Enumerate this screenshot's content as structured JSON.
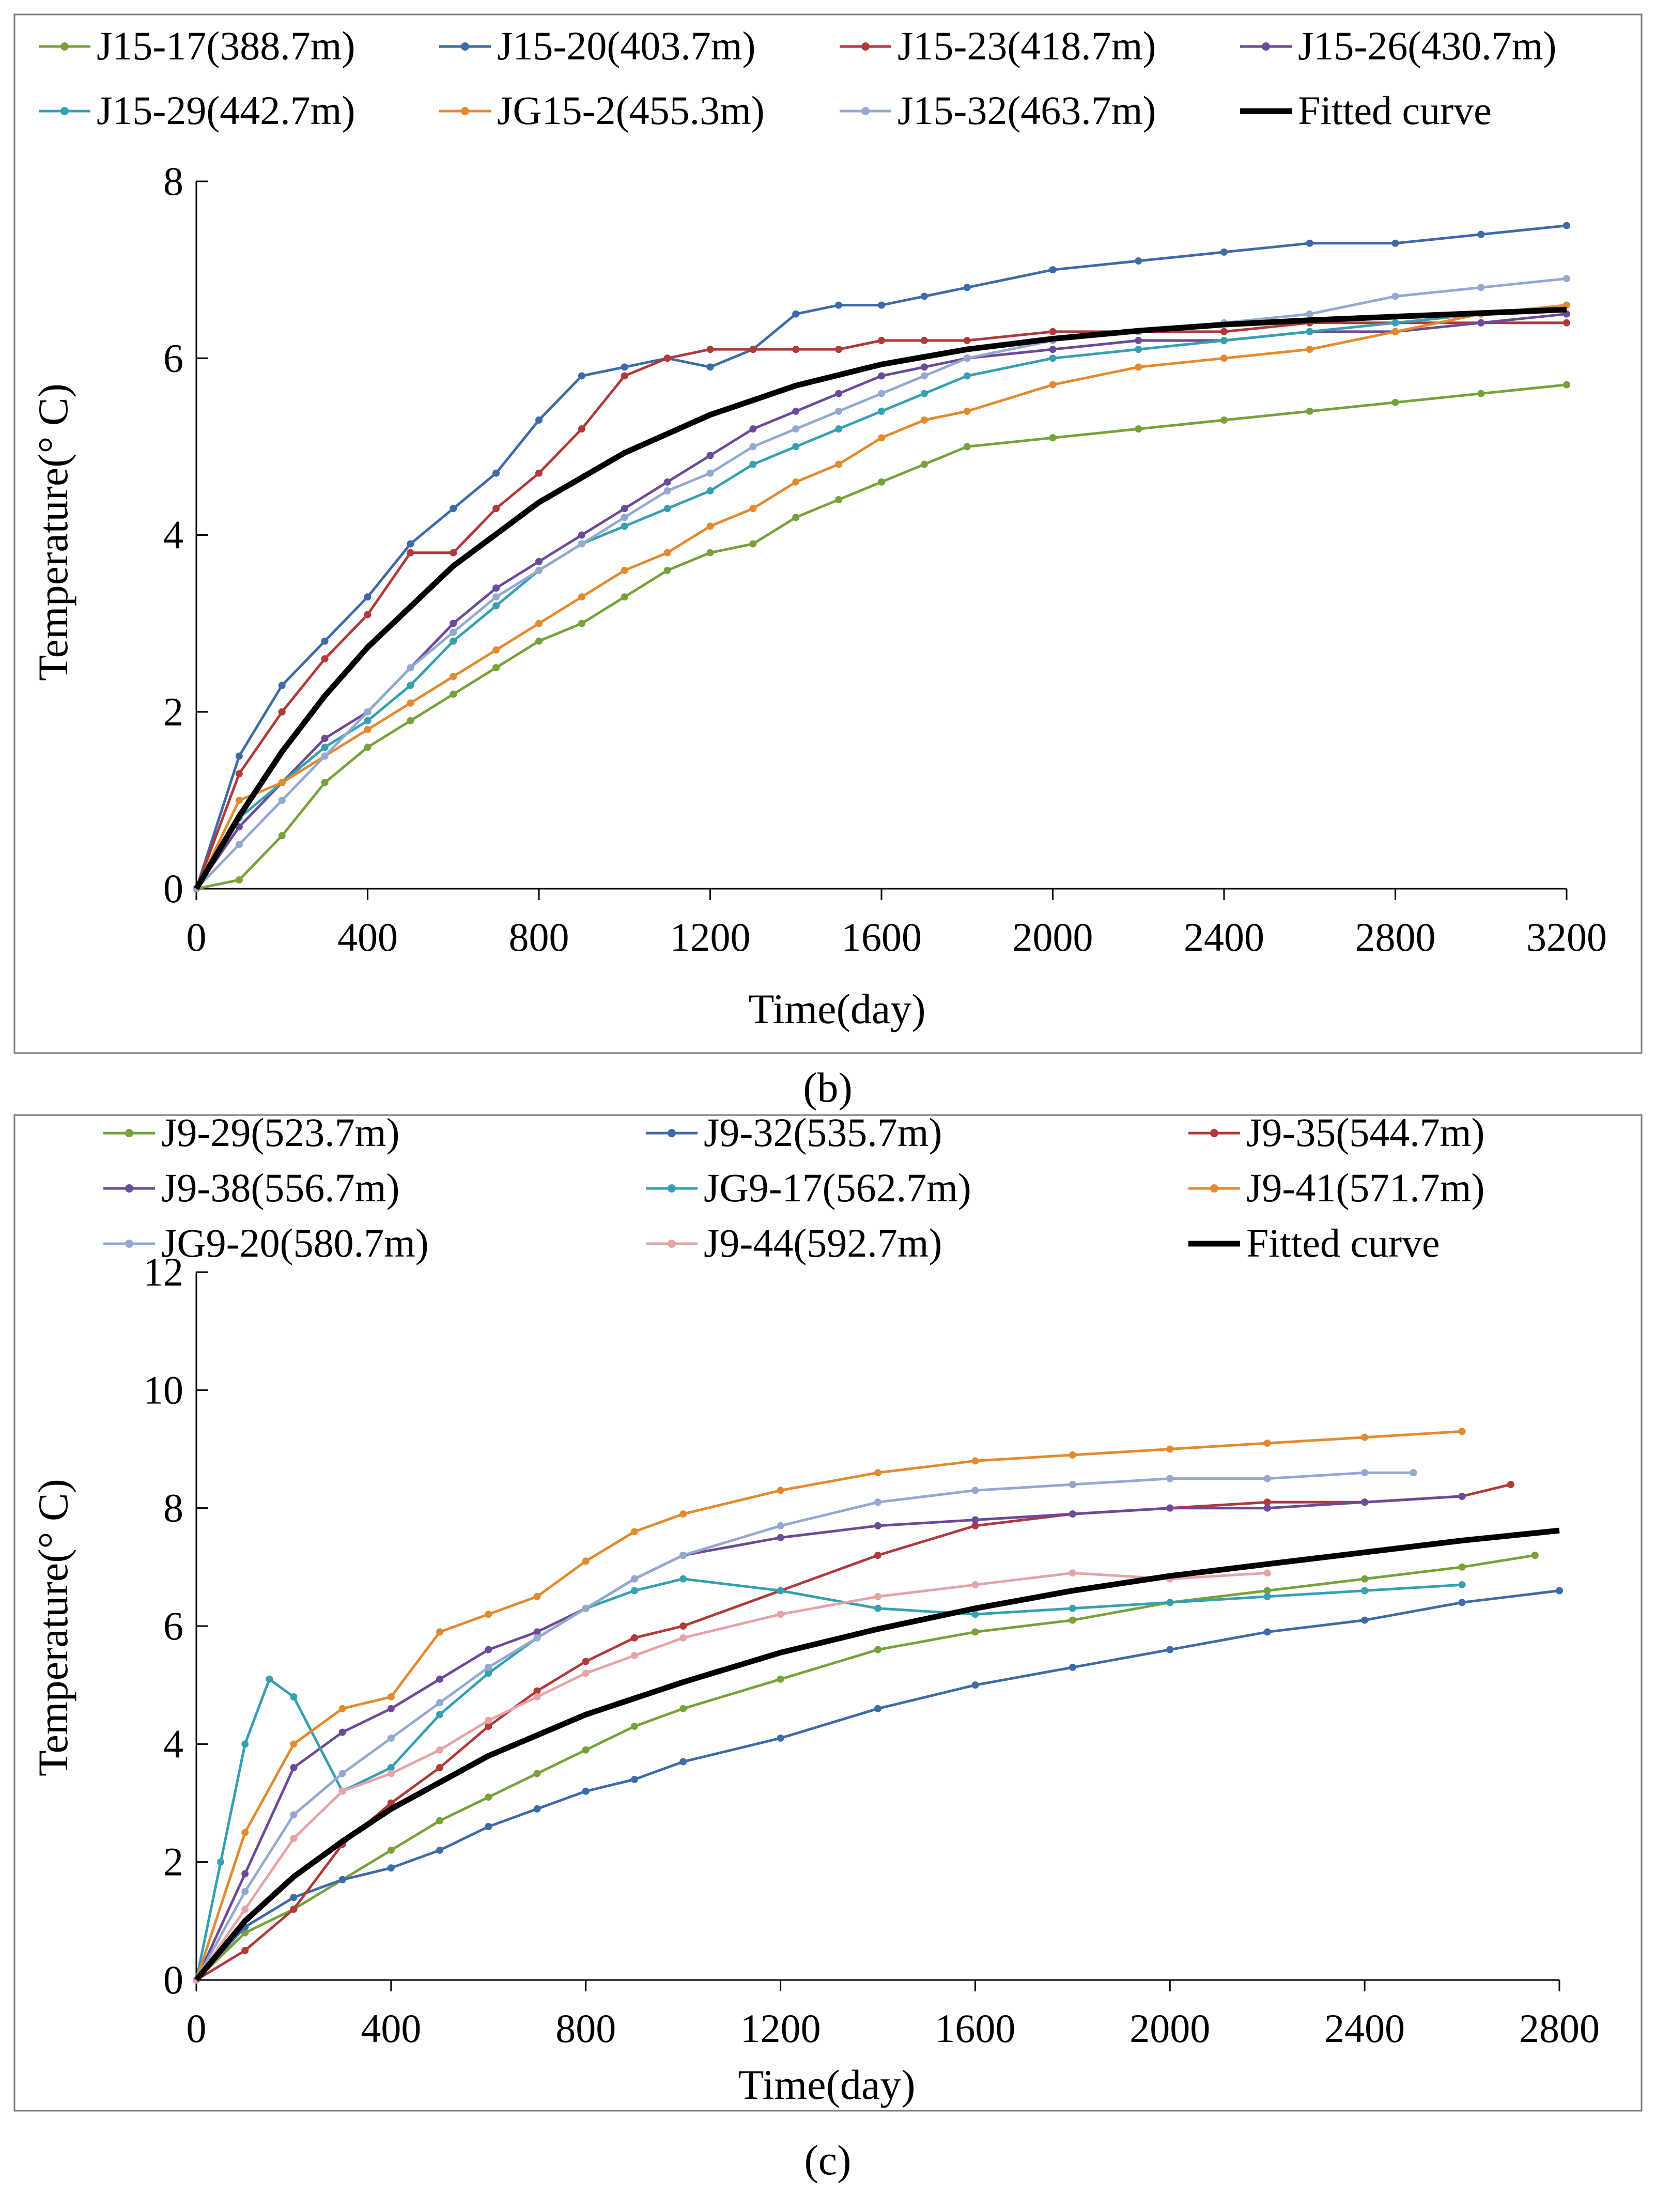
{
  "figure_captions": [
    "(b)",
    "(c)"
  ],
  "chart_data": [
    {
      "type": "line",
      "xlabel": "Time(day)",
      "ylabel": "Temperature(° C)",
      "xlim": [
        0,
        3200
      ],
      "ylim": [
        0,
        8
      ],
      "xticks": [
        "0",
        "400",
        "800",
        "1200",
        "1600",
        "2000",
        "2400",
        "2800",
        "3200"
      ],
      "yticks": [
        "0",
        "2",
        "4",
        "6",
        "8"
      ],
      "legend_columns": 4,
      "legend": [
        "J15-17(388.7m)",
        "J15-20(403.7m)",
        "J15-23(418.7m)",
        "J15-26(430.7m)",
        "J15-29(442.7m)",
        "JG15-2(455.3m)",
        "J15-32(463.7m)",
        "Fitted curve"
      ],
      "series": [
        {
          "name": "J15-17(388.7m)",
          "color": "#77a23a",
          "x": [
            0,
            100,
            200,
            300,
            400,
            500,
            600,
            700,
            800,
            900,
            1000,
            1100,
            1200,
            1300,
            1400,
            1500,
            1600,
            1700,
            1800,
            2000,
            2200,
            2400,
            2600,
            2800,
            3000,
            3200
          ],
          "y": [
            0,
            0.1,
            0.6,
            1.2,
            1.6,
            1.9,
            2.2,
            2.5,
            2.8,
            3.0,
            3.3,
            3.6,
            3.8,
            3.9,
            4.2,
            4.4,
            4.6,
            4.8,
            5.0,
            5.1,
            5.2,
            5.3,
            5.4,
            5.5,
            5.6,
            5.7
          ]
        },
        {
          "name": "J15-20(403.7m)",
          "color": "#3d6aa8",
          "x": [
            0,
            100,
            200,
            300,
            400,
            500,
            600,
            700,
            800,
            900,
            1000,
            1100,
            1200,
            1300,
            1400,
            1500,
            1600,
            1700,
            1800,
            2000,
            2200,
            2400,
            2600,
            2800,
            3000,
            3200
          ],
          "y": [
            0,
            1.5,
            2.3,
            2.8,
            3.3,
            3.9,
            4.3,
            4.7,
            5.3,
            5.8,
            5.9,
            6.0,
            5.9,
            6.1,
            6.5,
            6.6,
            6.6,
            6.7,
            6.8,
            7.0,
            7.1,
            7.2,
            7.3,
            7.3,
            7.4,
            7.5
          ]
        },
        {
          "name": "J15-23(418.7m)",
          "color": "#b1393a",
          "x": [
            0,
            100,
            200,
            300,
            400,
            500,
            600,
            700,
            800,
            900,
            1000,
            1100,
            1200,
            1300,
            1400,
            1500,
            1600,
            1700,
            1800,
            2000,
            2200,
            2400,
            2600,
            2800,
            3000,
            3200
          ],
          "y": [
            0,
            1.3,
            2.0,
            2.6,
            3.1,
            3.8,
            3.8,
            4.3,
            4.7,
            5.2,
            5.8,
            6.0,
            6.1,
            6.1,
            6.1,
            6.1,
            6.2,
            6.2,
            6.2,
            6.3,
            6.3,
            6.3,
            6.4,
            6.4,
            6.4,
            6.4
          ]
        },
        {
          "name": "J15-26(430.7m)",
          "color": "#6b4a99",
          "x": [
            0,
            100,
            200,
            300,
            400,
            500,
            600,
            700,
            800,
            900,
            1000,
            1100,
            1200,
            1300,
            1400,
            1500,
            1600,
            1700,
            1800,
            2000,
            2200,
            2400,
            2600,
            2800,
            3000,
            3200
          ],
          "y": [
            0,
            0.7,
            1.2,
            1.7,
            2.0,
            2.5,
            3.0,
            3.4,
            3.7,
            4.0,
            4.3,
            4.6,
            4.9,
            5.2,
            5.4,
            5.6,
            5.8,
            5.9,
            6.0,
            6.1,
            6.2,
            6.2,
            6.3,
            6.3,
            6.4,
            6.5
          ]
        },
        {
          "name": "J15-29(442.7m)",
          "color": "#36a0b3",
          "x": [
            0,
            100,
            200,
            300,
            400,
            500,
            600,
            700,
            800,
            900,
            1000,
            1100,
            1200,
            1300,
            1400,
            1500,
            1600,
            1700,
            1800,
            2000,
            2200,
            2400,
            2600,
            2800,
            3000,
            3200
          ],
          "y": [
            0,
            0.8,
            1.2,
            1.6,
            1.9,
            2.3,
            2.8,
            3.2,
            3.6,
            3.9,
            4.1,
            4.3,
            4.5,
            4.8,
            5.0,
            5.2,
            5.4,
            5.6,
            5.8,
            6.0,
            6.1,
            6.2,
            6.3,
            6.4,
            6.5,
            6.6
          ]
        },
        {
          "name": "JG15-2(455.3m)",
          "color": "#e48a2e",
          "x": [
            0,
            100,
            200,
            300,
            400,
            500,
            600,
            700,
            800,
            900,
            1000,
            1100,
            1200,
            1300,
            1400,
            1500,
            1600,
            1700,
            1800,
            2000,
            2200,
            2400,
            2600,
            2800,
            3000,
            3200
          ],
          "y": [
            0,
            1.0,
            1.2,
            1.5,
            1.8,
            2.1,
            2.4,
            2.7,
            3.0,
            3.3,
            3.6,
            3.8,
            4.1,
            4.3,
            4.6,
            4.8,
            5.1,
            5.3,
            5.4,
            5.7,
            5.9,
            6.0,
            6.1,
            6.3,
            6.5,
            6.6
          ]
        },
        {
          "name": "J15-32(463.7m)",
          "color": "#93a9d2",
          "x": [
            0,
            100,
            200,
            300,
            400,
            500,
            600,
            700,
            800,
            900,
            1000,
            1100,
            1200,
            1300,
            1400,
            1500,
            1600,
            1700,
            1800,
            2000,
            2200,
            2400,
            2600,
            2800,
            3000,
            3200
          ],
          "y": [
            0,
            0.5,
            1.0,
            1.5,
            2.0,
            2.5,
            2.9,
            3.3,
            3.6,
            3.9,
            4.2,
            4.5,
            4.7,
            5.0,
            5.2,
            5.4,
            5.6,
            5.8,
            6.0,
            6.2,
            6.3,
            6.4,
            6.5,
            6.7,
            6.8,
            6.9
          ]
        },
        {
          "name": "Fitted curve",
          "color": "#000000",
          "fitted": true,
          "x": [
            0,
            100,
            200,
            300,
            400,
            600,
            800,
            1000,
            1200,
            1400,
            1600,
            1800,
            2000,
            2200,
            2400,
            2600,
            2800,
            3000,
            3200
          ],
          "y": [
            0,
            0.82,
            1.55,
            2.18,
            2.73,
            3.65,
            4.37,
            4.93,
            5.36,
            5.69,
            5.93,
            6.1,
            6.22,
            6.31,
            6.38,
            6.43,
            6.47,
            6.51,
            6.55
          ]
        }
      ]
    },
    {
      "type": "line",
      "xlabel": "Time(day)",
      "ylabel": "Temperature(° C)",
      "xlim": [
        0,
        2800
      ],
      "ylim": [
        0,
        12
      ],
      "xticks": [
        "0",
        "400",
        "800",
        "1200",
        "1600",
        "2000",
        "2400",
        "2800"
      ],
      "yticks": [
        "0",
        "2",
        "4",
        "6",
        "8",
        "10",
        "12"
      ],
      "legend_columns": 3,
      "legend": [
        "J9-29(523.7m)",
        "J9-32(535.7m)",
        "J9-35(544.7m)",
        "J9-38(556.7m)",
        "JG9-17(562.7m)",
        "J9-41(571.7m)",
        "JG9-20(580.7m)",
        "J9-44(592.7m)",
        "Fitted curve"
      ],
      "series": [
        {
          "name": "J9-29(523.7m)",
          "color": "#77a23a",
          "x": [
            0,
            100,
            200,
            300,
            400,
            500,
            600,
            700,
            800,
            900,
            1000,
            1200,
            1400,
            1600,
            1800,
            2000,
            2200,
            2400,
            2600,
            2750
          ],
          "y": [
            0,
            0.8,
            1.2,
            1.7,
            2.2,
            2.7,
            3.1,
            3.5,
            3.9,
            4.3,
            4.6,
            5.1,
            5.6,
            5.9,
            6.1,
            6.4,
            6.6,
            6.8,
            7.0,
            7.2
          ]
        },
        {
          "name": "J9-32(535.7m)",
          "color": "#3d6aa8",
          "x": [
            0,
            100,
            200,
            300,
            400,
            500,
            600,
            700,
            800,
            900,
            1000,
            1200,
            1400,
            1600,
            1800,
            2000,
            2200,
            2400,
            2600,
            2800
          ],
          "y": [
            0,
            0.9,
            1.4,
            1.7,
            1.9,
            2.2,
            2.6,
            2.9,
            3.2,
            3.4,
            3.7,
            4.1,
            4.6,
            5.0,
            5.3,
            5.6,
            5.9,
            6.1,
            6.4,
            6.6
          ]
        },
        {
          "name": "J9-35(544.7m)",
          "color": "#b1393a",
          "x": [
            0,
            100,
            200,
            300,
            400,
            500,
            600,
            700,
            800,
            900,
            1000,
            1200,
            1400,
            1600,
            1800,
            2000,
            2200,
            2400,
            2600,
            2700
          ],
          "y": [
            0,
            0.5,
            1.2,
            2.3,
            3.0,
            3.6,
            4.3,
            4.9,
            5.4,
            5.8,
            6.0,
            6.6,
            7.2,
            7.7,
            7.9,
            8.0,
            8.1,
            8.1,
            8.2,
            8.4
          ]
        },
        {
          "name": "J9-38(556.7m)",
          "color": "#6b4a99",
          "x": [
            0,
            100,
            200,
            300,
            400,
            500,
            600,
            700,
            800,
            900,
            1000,
            1200,
            1400,
            1600,
            1800,
            2000,
            2200,
            2400,
            2600
          ],
          "y": [
            0,
            1.8,
            3.6,
            4.2,
            4.6,
            5.1,
            5.6,
            5.9,
            6.3,
            6.8,
            7.2,
            7.5,
            7.7,
            7.8,
            7.9,
            8.0,
            8.0,
            8.1,
            8.2
          ]
        },
        {
          "name": "JG9-17(562.7m)",
          "color": "#36a0b3",
          "x": [
            0,
            50,
            100,
            150,
            200,
            300,
            400,
            500,
            600,
            700,
            800,
            900,
            1000,
            1200,
            1400,
            1600,
            1800,
            2000,
            2200,
            2400,
            2600
          ],
          "y": [
            0,
            2.0,
            4.0,
            5.1,
            4.8,
            3.2,
            3.6,
            4.5,
            5.2,
            5.8,
            6.3,
            6.6,
            6.8,
            6.6,
            6.3,
            6.2,
            6.3,
            6.4,
            6.5,
            6.6,
            6.7
          ]
        },
        {
          "name": "J9-41(571.7m)",
          "color": "#e48a2e",
          "x": [
            0,
            100,
            200,
            300,
            400,
            500,
            600,
            700,
            800,
            900,
            1000,
            1200,
            1400,
            1600,
            1800,
            2000,
            2200,
            2400,
            2600
          ],
          "y": [
            0,
            2.5,
            4.0,
            4.6,
            4.8,
            5.9,
            6.2,
            6.5,
            7.1,
            7.6,
            7.9,
            8.3,
            8.6,
            8.8,
            8.9,
            9.0,
            9.1,
            9.2,
            9.3
          ]
        },
        {
          "name": "JG9-20(580.7m)",
          "color": "#93a9d2",
          "x": [
            0,
            100,
            200,
            300,
            400,
            500,
            600,
            700,
            800,
            900,
            1000,
            1200,
            1400,
            1600,
            1800,
            2000,
            2200,
            2400,
            2500
          ],
          "y": [
            0,
            1.5,
            2.8,
            3.5,
            4.1,
            4.7,
            5.3,
            5.8,
            6.3,
            6.8,
            7.2,
            7.7,
            8.1,
            8.3,
            8.4,
            8.5,
            8.5,
            8.6,
            8.6
          ]
        },
        {
          "name": "J9-44(592.7m)",
          "color": "#e6a3a7",
          "x": [
            0,
            100,
            200,
            300,
            400,
            500,
            600,
            700,
            800,
            900,
            1000,
            1200,
            1400,
            1600,
            1800,
            2000,
            2200
          ],
          "y": [
            0,
            1.2,
            2.4,
            3.2,
            3.5,
            3.9,
            4.4,
            4.8,
            5.2,
            5.5,
            5.8,
            6.2,
            6.5,
            6.7,
            6.9,
            6.8,
            6.9
          ]
        },
        {
          "name": "Fitted curve",
          "color": "#000000",
          "fitted": true,
          "x": [
            0,
            100,
            200,
            300,
            400,
            600,
            800,
            1000,
            1200,
            1400,
            1600,
            1800,
            2000,
            2200,
            2400,
            2600,
            2800
          ],
          "y": [
            0,
            1.0,
            1.75,
            2.35,
            2.9,
            3.8,
            4.5,
            5.05,
            5.55,
            5.95,
            6.3,
            6.6,
            6.85,
            7.05,
            7.25,
            7.45,
            7.62
          ]
        }
      ]
    }
  ]
}
